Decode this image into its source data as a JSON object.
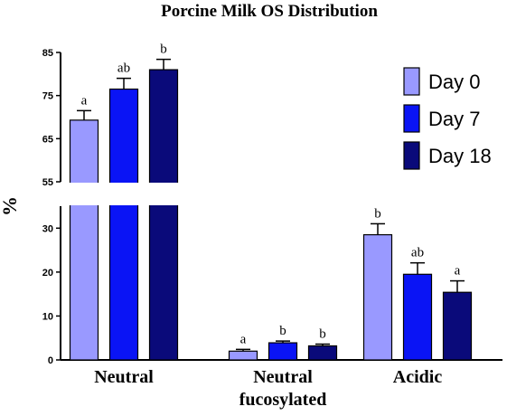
{
  "chart_data": {
    "type": "bar",
    "title": "Porcine Milk OS Distribution",
    "ylabel": "%",
    "xlabel": "",
    "categories": [
      "Neutral",
      "Neutral fucosylated",
      "Acidic"
    ],
    "category_lines": [
      [
        "Neutral"
      ],
      [
        "Neutral",
        "fucosylated"
      ],
      [
        "Acidic"
      ]
    ],
    "series": [
      {
        "name": "Day 0",
        "color": "#9999ff",
        "values": [
          69.3,
          2.0,
          28.5
        ],
        "errors": [
          2.2,
          0.4,
          2.5
        ],
        "sig": [
          "a",
          "a",
          "b"
        ]
      },
      {
        "name": "Day 7",
        "color": "#0a14f5",
        "values": [
          76.5,
          3.9,
          19.5
        ],
        "errors": [
          2.5,
          0.4,
          2.6
        ],
        "sig": [
          "ab",
          "b",
          "ab"
        ]
      },
      {
        "name": "Day 18",
        "color": "#0a0a7a",
        "values": [
          81.0,
          3.2,
          15.4
        ],
        "errors": [
          2.4,
          0.4,
          2.6
        ],
        "sig": [
          "b",
          "b",
          "a"
        ]
      }
    ],
    "axis_break": {
      "lower_range": [
        0,
        35
      ],
      "upper_range": [
        55,
        85
      ]
    },
    "lower_ticks": [
      0,
      10,
      20,
      30
    ],
    "upper_ticks": [
      55,
      65,
      75,
      85
    ],
    "legend_position": "top-right",
    "grid": false
  }
}
